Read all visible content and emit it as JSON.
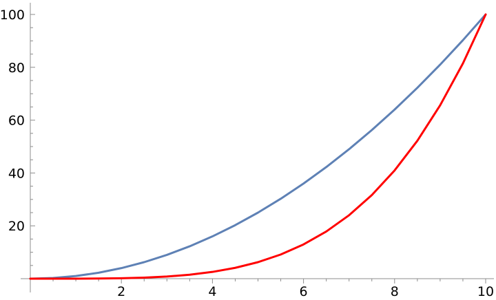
{
  "chart_data": {
    "type": "line",
    "title": "",
    "xlabel": "",
    "ylabel": "",
    "xlim": [
      0,
      10
    ],
    "ylim": [
      0,
      100
    ],
    "x_ticks": [
      2,
      4,
      6,
      8,
      10
    ],
    "y_ticks": [
      20,
      40,
      60,
      80,
      100
    ],
    "x_minor_step": 0.5,
    "y_minor_step": 5,
    "grid": false,
    "legend": "none",
    "series": [
      {
        "color": "#5e81b5",
        "x": [
          0,
          0.5,
          1,
          1.5,
          2,
          2.5,
          3,
          3.5,
          4,
          4.5,
          5,
          5.5,
          6,
          6.5,
          7,
          7.5,
          8,
          8.5,
          9,
          9.5,
          10
        ],
        "y": [
          0,
          0.25,
          1,
          2.25,
          4,
          6.25,
          9,
          12.25,
          16,
          20.25,
          25,
          30.25,
          36,
          42.25,
          49,
          56.25,
          64,
          72.25,
          81,
          90.25,
          100
        ]
      },
      {
        "color": "#ff0000",
        "x": [
          0,
          0.5,
          1,
          1.5,
          2,
          2.5,
          3,
          3.5,
          4,
          4.5,
          5,
          5.5,
          6,
          6.5,
          7,
          7.5,
          8,
          8.5,
          9,
          9.5,
          10
        ],
        "y": [
          0,
          0.0006,
          0.01,
          0.05,
          0.16,
          0.39,
          0.81,
          1.5,
          2.56,
          4.1,
          6.25,
          9.15,
          12.96,
          17.85,
          24.01,
          31.64,
          40.96,
          52.2,
          65.61,
          81.45,
          100
        ]
      }
    ]
  }
}
